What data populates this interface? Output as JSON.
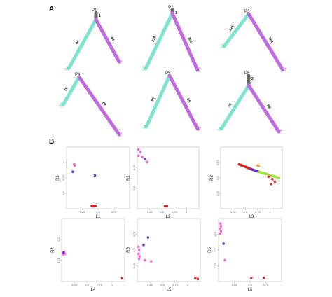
{
  "panels": {
    "a_label": "A",
    "b_label": "B"
  },
  "colors": {
    "left": "#7fe3d0",
    "right": "#c26be0",
    "root": "#6d6d6d",
    "pink": "#ff66d8",
    "purple": "#6633cc",
    "red": "#e0201b",
    "green": "#9be339",
    "orange": "#ff9a2e"
  },
  "trees": [
    {
      "root": "P1",
      "root_num": "1",
      "left_num": "64",
      "right_num": "44",
      "left_leaf": "R1",
      "right_leaf": "L1"
    },
    {
      "root": "P2",
      "root_num": "1",
      "left_num": "279",
      "right_num": "725",
      "left_leaf": "L2",
      "right_leaf": "R2"
    },
    {
      "root": "P3",
      "root_num": "",
      "left_num": "121",
      "right_num": "384",
      "left_leaf": "L3",
      "right_leaf": "R3"
    },
    {
      "root": "P4",
      "root_num": "",
      "left_num": "16",
      "right_num": "82",
      "left_leaf": "R4",
      "right_leaf": "L4"
    },
    {
      "root": "P5",
      "root_num": "",
      "left_num": "61",
      "right_num": "65",
      "left_leaf": "L5",
      "right_leaf": "R5"
    },
    {
      "root": "P6",
      "root_num": "2",
      "left_num": "56",
      "right_num": "88",
      "left_leaf": "L6",
      "right_leaf": "R6"
    }
  ],
  "scatters": [
    {
      "xlabel": "L1",
      "ylabel": "R1",
      "xticks": [
        "0.25",
        "0.5",
        "0.75"
      ],
      "yticks": [
        "0.5",
        "0.75",
        "1"
      ],
      "points": [
        {
          "x": 0.12,
          "y": 0.72,
          "c": "pink"
        },
        {
          "x": 0.13,
          "y": 0.7,
          "c": "pink"
        },
        {
          "x": 0.1,
          "y": 0.6,
          "c": "purple"
        },
        {
          "x": 0.45,
          "y": 0.54,
          "c": "purple"
        },
        {
          "x": 0.4,
          "y": 0.05,
          "c": "red"
        },
        {
          "x": 0.42,
          "y": 0.04,
          "c": "red"
        },
        {
          "x": 0.44,
          "y": 0.04,
          "c": "red"
        },
        {
          "x": 0.46,
          "y": 0.05,
          "c": "red"
        }
      ]
    },
    {
      "xlabel": "L2",
      "ylabel": "R2",
      "xticks": [
        "0.25",
        "0.5",
        "0.75",
        "1"
      ],
      "yticks": [
        "0.5",
        "0.75"
      ],
      "points": [
        {
          "x": 0.02,
          "y": 0.96,
          "c": "pink"
        },
        {
          "x": 0.05,
          "y": 0.92,
          "c": "pink"
        },
        {
          "x": 0.02,
          "y": 0.86,
          "c": "pink"
        },
        {
          "x": 0.08,
          "y": 0.84,
          "c": "pink"
        },
        {
          "x": 0.12,
          "y": 0.8,
          "c": "purple"
        },
        {
          "x": 0.16,
          "y": 0.76,
          "c": "pink"
        },
        {
          "x": 0.45,
          "y": 0.04,
          "c": "red"
        },
        {
          "x": 0.48,
          "y": 0.04,
          "c": "red"
        }
      ]
    },
    {
      "xlabel": "L3",
      "ylabel": "R3",
      "xticks": [
        "0.25",
        "0.5",
        "0.75",
        "1"
      ],
      "yticks": [
        "0.25",
        "0.5",
        "0.75"
      ],
      "points": [
        {
          "x": 0.6,
          "y": 0.7,
          "c": "orange"
        },
        {
          "x": 0.62,
          "y": 0.7,
          "c": "orange"
        },
        {
          "x": 0.78,
          "y": 0.52,
          "c": "red"
        },
        {
          "x": 0.84,
          "y": 0.48,
          "c": "red"
        },
        {
          "x": 0.88,
          "y": 0.44,
          "c": "red"
        },
        {
          "x": 0.82,
          "y": 0.4,
          "c": "red"
        }
      ]
    },
    {
      "xlabel": "L4",
      "ylabel": "R4",
      "xticks": [
        "0.25",
        "0.5",
        "0.75",
        "1"
      ],
      "yticks": [
        "0.25",
        "0.5"
      ],
      "points": [
        {
          "x": 0.02,
          "y": 0.45,
          "c": "pink"
        },
        {
          "x": 0.03,
          "y": 0.43,
          "c": "pink"
        },
        {
          "x": 0.04,
          "y": 0.47,
          "c": "pink"
        },
        {
          "x": 0.05,
          "y": 0.44,
          "c": "pink"
        },
        {
          "x": 0.03,
          "y": 0.46,
          "c": "purple"
        },
        {
          "x": 0.96,
          "y": 0.05,
          "c": "red"
        }
      ]
    },
    {
      "xlabel": "L5",
      "ylabel": "R5",
      "xticks": [
        "0.25",
        "0.5",
        "0.75",
        "1"
      ],
      "yticks": [
        "0.25",
        "0.5",
        "0.75"
      ],
      "points": [
        {
          "x": 0.02,
          "y": 0.55,
          "c": "pink"
        },
        {
          "x": 0.03,
          "y": 0.5,
          "c": "pink"
        },
        {
          "x": 0.02,
          "y": 0.44,
          "c": "pink"
        },
        {
          "x": 0.04,
          "y": 0.4,
          "c": "pink"
        },
        {
          "x": 0.03,
          "y": 0.36,
          "c": "pink"
        },
        {
          "x": 0.1,
          "y": 0.58,
          "c": "purple"
        },
        {
          "x": 0.17,
          "y": 0.7,
          "c": "purple"
        },
        {
          "x": 0.22,
          "y": 0.32,
          "c": "pink"
        },
        {
          "x": 0.12,
          "y": 0.34,
          "c": "pink"
        },
        {
          "x": 0.92,
          "y": 0.06,
          "c": "red"
        },
        {
          "x": 0.96,
          "y": 0.04,
          "c": "red"
        }
      ]
    },
    {
      "xlabel": "L6",
      "ylabel": "R6",
      "xticks": [
        "0.25",
        "0.5",
        "0.75"
      ],
      "yticks": [
        "0.25",
        "0.5",
        "0.75"
      ],
      "points": [
        {
          "x": 0.03,
          "y": 0.92,
          "c": "pink"
        },
        {
          "x": 0.04,
          "y": 0.88,
          "c": "pink"
        },
        {
          "x": 0.03,
          "y": 0.84,
          "c": "pink"
        },
        {
          "x": 0.04,
          "y": 0.8,
          "c": "pink"
        },
        {
          "x": 0.03,
          "y": 0.76,
          "c": "pink"
        },
        {
          "x": 0.08,
          "y": 0.6,
          "c": "purple"
        },
        {
          "x": 0.1,
          "y": 0.34,
          "c": "pink"
        },
        {
          "x": 0.52,
          "y": 0.06,
          "c": "red"
        },
        {
          "x": 0.72,
          "y": 0.06,
          "c": "red"
        }
      ]
    }
  ]
}
